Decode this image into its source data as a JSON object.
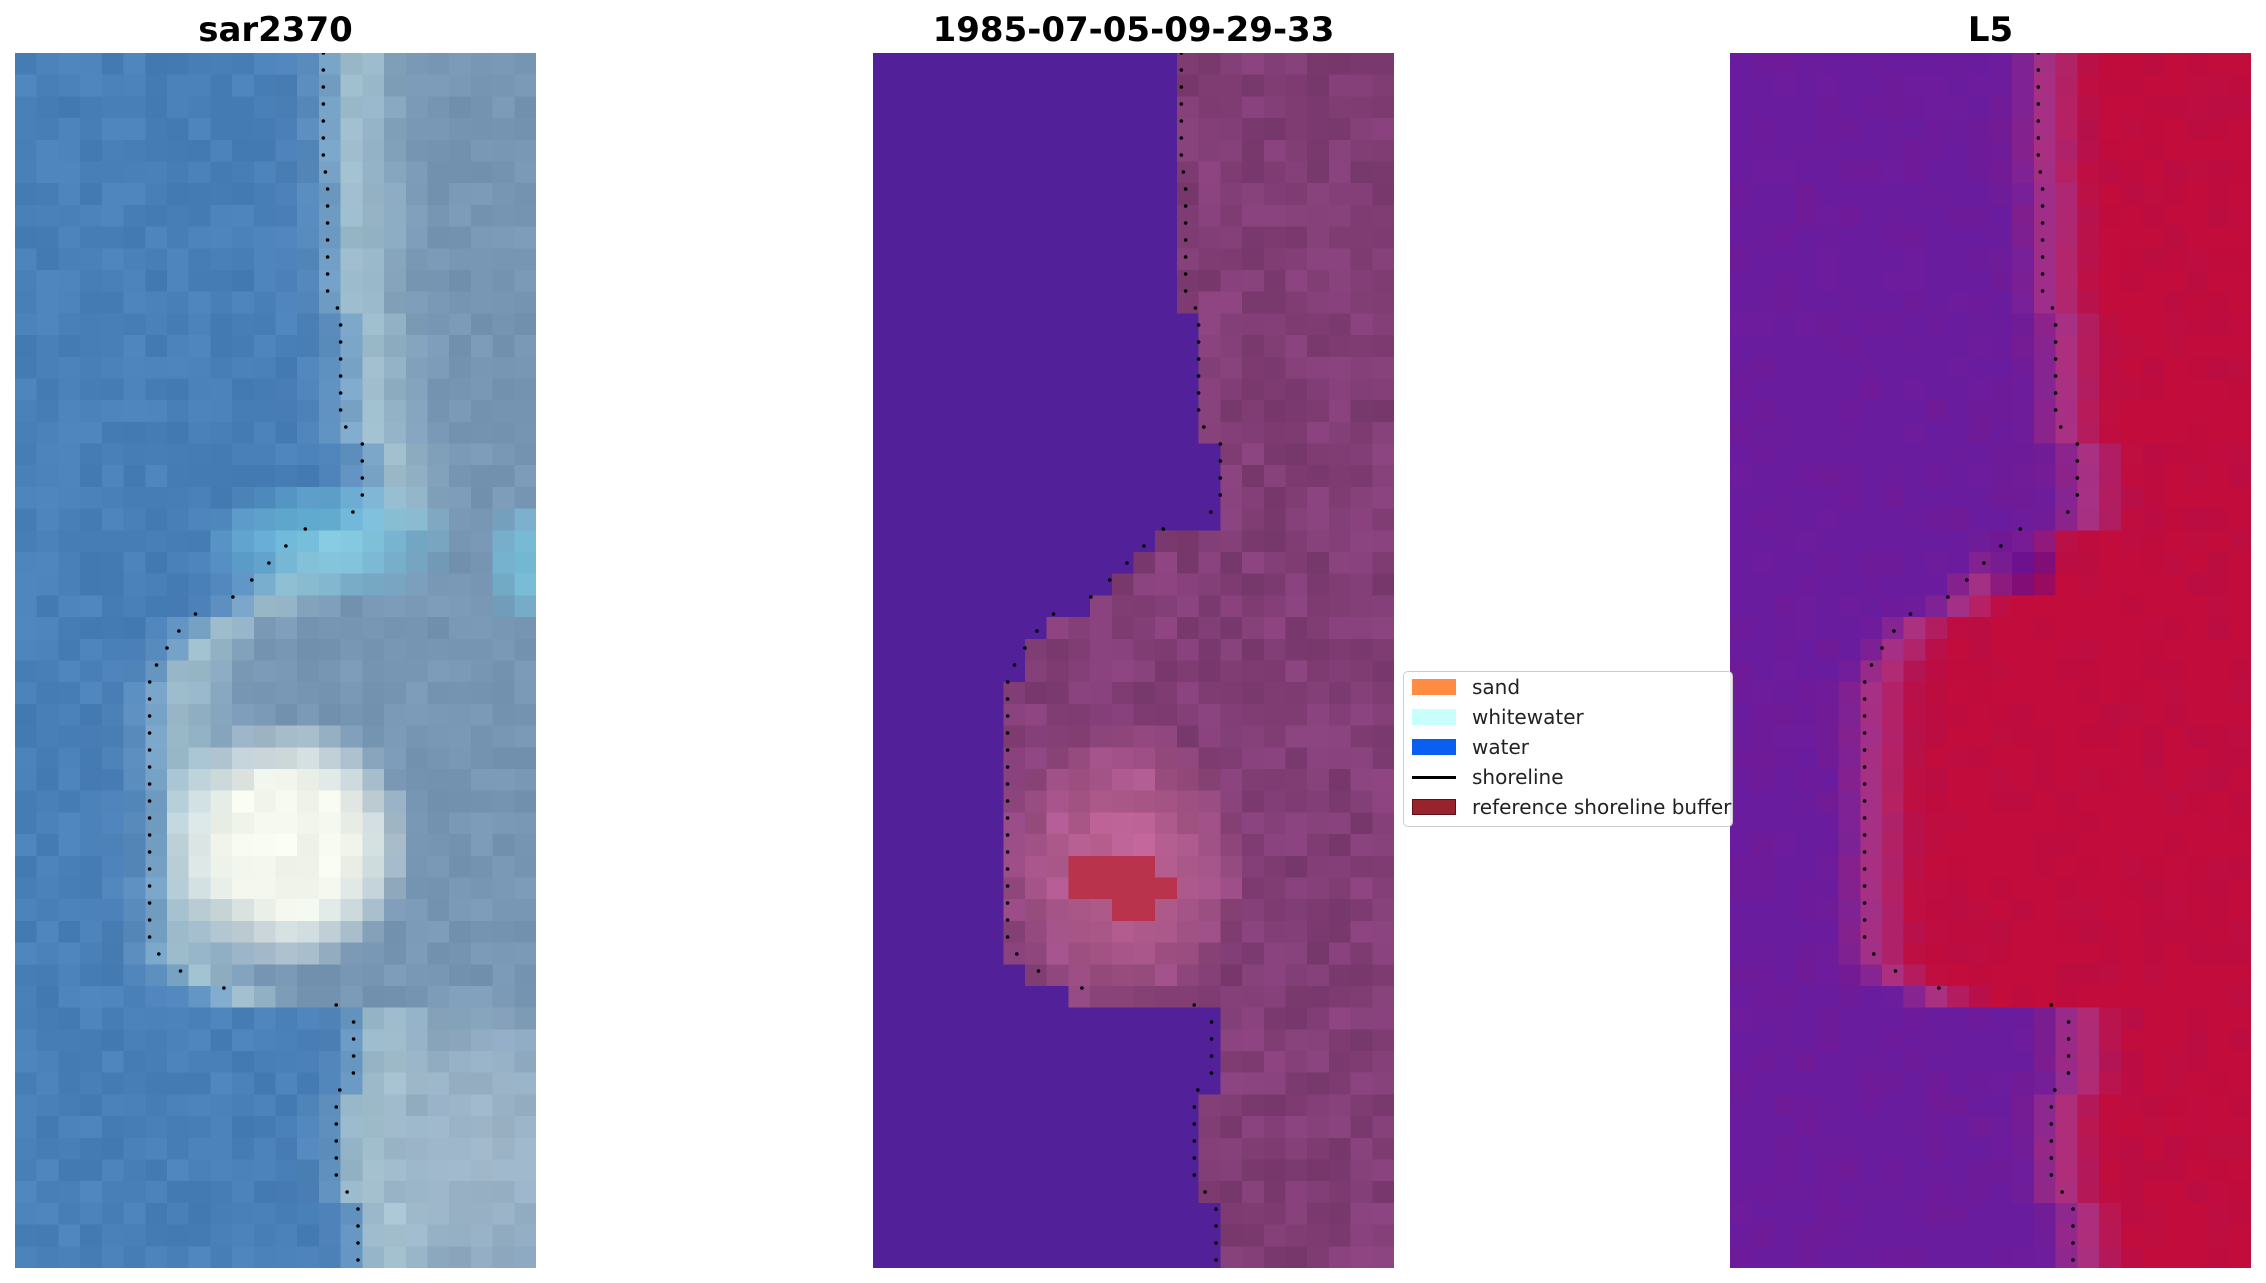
{
  "panels": [
    {
      "title": "sar2370",
      "kind": "rgb"
    },
    {
      "title": "1985-07-05-09-29-33",
      "kind": "classified"
    },
    {
      "title": "L5",
      "kind": "index"
    }
  ],
  "legend": {
    "items": [
      {
        "label": "sand",
        "type": "patch",
        "color": "#ff8c42"
      },
      {
        "label": "whitewater",
        "type": "patch",
        "color": "#c8fffb"
      },
      {
        "label": "water",
        "type": "patch",
        "color": "#0a5ff0"
      },
      {
        "label": "shoreline",
        "type": "line",
        "color": "#000000"
      },
      {
        "label": "reference shoreline buffer",
        "type": "patch",
        "color": "#98232c"
      }
    ]
  },
  "colors": {
    "water_overlay": "#52219a",
    "buffer": "#b8334b",
    "sea_blue": "#4a84c0",
    "foam": "#f0f5ec",
    "index_low": "#6a1c9e",
    "index_high": "#c10c3c"
  },
  "icons": {
    "shoreline_marker": "black-dot"
  }
}
